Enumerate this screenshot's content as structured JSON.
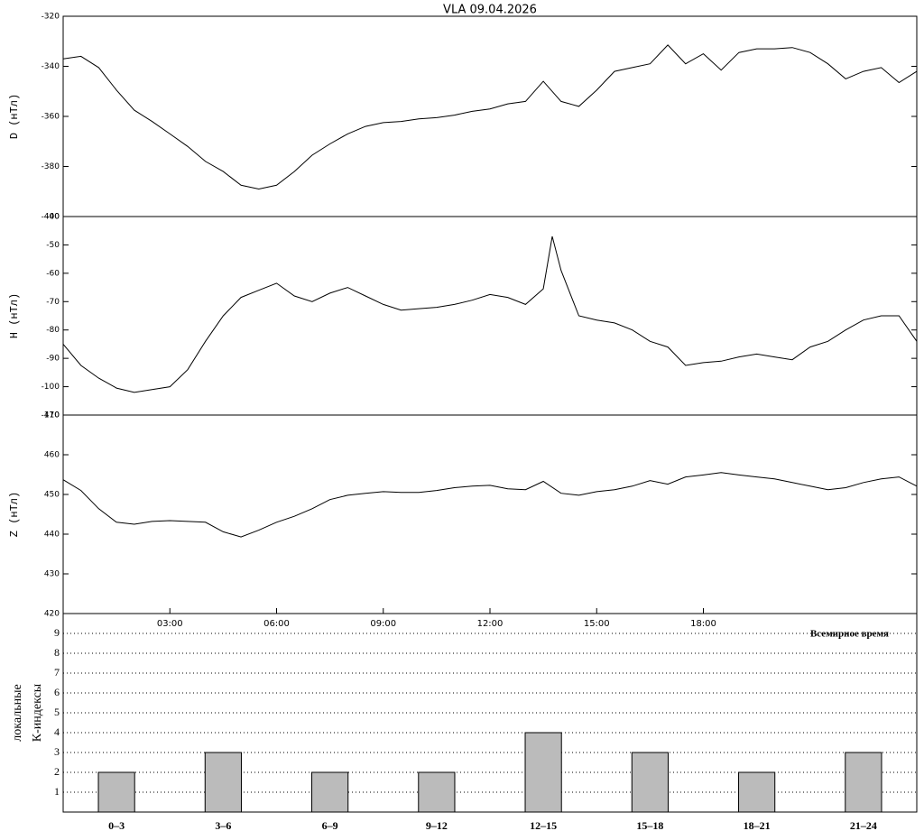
{
  "chart_data": [
    {
      "type": "line",
      "title": "VLA   09.04.2026",
      "ylabel": "D (нТл)",
      "color": "#000000",
      "x": [
        0,
        0.5,
        1,
        1.5,
        2,
        2.5,
        3,
        3.5,
        4,
        4.5,
        5,
        5.5,
        6,
        6.5,
        7,
        7.5,
        8,
        8.5,
        9,
        9.5,
        10,
        10.5,
        11,
        11.5,
        12,
        12.5,
        13,
        13.5,
        14,
        14.5,
        15,
        15.5,
        16,
        16.5,
        17,
        17.5,
        18,
        18.5,
        19,
        19.5,
        20,
        20.5,
        21,
        21.5,
        22,
        22.5,
        23,
        23.5,
        24
      ],
      "values": [
        -337,
        -336,
        -340.5,
        -349.5,
        -357.5,
        -362,
        -367,
        -372,
        -378,
        -382,
        -387.5,
        -389,
        -387.5,
        -382,
        -375.5,
        -371,
        -367,
        -364,
        -362.5,
        -362,
        -361,
        -360.5,
        -359.5,
        -358,
        -357,
        -355,
        -354,
        -346,
        -354,
        -356,
        -349.5,
        -342,
        -340.5,
        -339,
        -331.5,
        -339,
        -335,
        -341.5,
        -334.5,
        -333,
        -333,
        -332.5,
        -334.5,
        -339,
        -345,
        -342,
        -340.5,
        -346.5,
        -342
      ],
      "xlim": [
        0,
        24
      ],
      "ylim": [
        -400,
        -320
      ],
      "yticks": [
        -320,
        -340,
        -360,
        -380,
        -400
      ]
    },
    {
      "type": "line",
      "ylabel": "H (нТл)",
      "color": "#000000",
      "x": [
        0,
        0.5,
        1,
        1.5,
        2,
        2.5,
        3,
        3.5,
        4,
        4.5,
        5,
        5.5,
        6,
        6.5,
        7,
        7.5,
        8,
        8.5,
        9,
        9.5,
        10,
        10.5,
        11,
        11.5,
        12,
        12.5,
        13,
        13.5,
        13.75,
        14,
        14.5,
        15,
        15.5,
        16,
        16.5,
        17,
        17.5,
        18,
        18.5,
        19,
        19.5,
        20,
        20.5,
        21,
        21.5,
        22,
        22.5,
        23,
        23.5,
        24
      ],
      "values": [
        -85,
        -92.5,
        -97,
        -100.5,
        -102,
        -101,
        -100,
        -94,
        -84,
        -75,
        -68.5,
        -66,
        -63.5,
        -68,
        -70,
        -67,
        -65,
        -68,
        -71,
        -73,
        -72.5,
        -72,
        -71,
        -69.5,
        -67.5,
        -68.5,
        -71,
        -65.5,
        -47,
        -59,
        -75,
        -76.5,
        -77.5,
        -80,
        -84,
        -86,
        -92.5,
        -91.5,
        -91,
        -89.5,
        -88.5,
        -89.5,
        -90.5,
        -86,
        -84,
        -80,
        -76.5,
        -75,
        -75,
        -84
      ],
      "xlim": [
        0,
        24
      ],
      "ylim": [
        -110,
        -40
      ],
      "yticks": [
        -40,
        -50,
        -60,
        -70,
        -80,
        -90,
        -100,
        -110
      ]
    },
    {
      "type": "line",
      "ylabel": "Z (нТл)",
      "color": "#000000",
      "x_label": "Всемирное время",
      "x": [
        0,
        0.5,
        1,
        1.5,
        2,
        2.5,
        3,
        3.5,
        4,
        4.5,
        5,
        5.5,
        6,
        6.5,
        7,
        7.5,
        8,
        8.5,
        9,
        9.5,
        10,
        10.5,
        11,
        11.5,
        12,
        12.5,
        13,
        13.5,
        14,
        14.5,
        15,
        15.5,
        16,
        16.5,
        17,
        17.5,
        18,
        18.5,
        19,
        19.5,
        20,
        20.5,
        21,
        21.5,
        22,
        22.5,
        23,
        23.5,
        24
      ],
      "values": [
        453.7,
        451,
        446.4,
        443,
        442.5,
        443.2,
        443.4,
        443.2,
        443,
        440.6,
        439.3,
        441,
        443,
        444.5,
        446.4,
        448.7,
        449.8,
        450.3,
        450.7,
        450.5,
        450.5,
        451,
        451.7,
        452.1,
        452.3,
        451.4,
        451.2,
        453.3,
        450.3,
        449.8,
        450.7,
        451.2,
        452.1,
        453.5,
        452.6,
        454.4,
        454.9,
        455.5,
        454.9,
        454.4,
        453.9,
        453,
        452.1,
        451.2,
        451.7,
        453,
        453.9,
        454.4,
        452.1
      ],
      "xlim": [
        0,
        24
      ],
      "ylim": [
        420,
        470
      ],
      "yticks": [
        470,
        460,
        450,
        440,
        430,
        420
      ],
      "xticks": [
        {
          "value": 3,
          "label": "03:00"
        },
        {
          "value": 6,
          "label": "06:00"
        },
        {
          "value": 9,
          "label": "09:00"
        },
        {
          "value": 12,
          "label": "12:00"
        },
        {
          "value": 15,
          "label": "15:00"
        },
        {
          "value": 18,
          "label": "18:00"
        }
      ]
    },
    {
      "type": "bar",
      "ylabel": [
        "локальные",
        "К-индексы"
      ],
      "color": "#bbbbbb",
      "categories": [
        "0–3",
        "3–6",
        "6–9",
        "9–12",
        "12–15",
        "15–18",
        "18–21",
        "21–24"
      ],
      "values": [
        2,
        3,
        2,
        2,
        4,
        3,
        2,
        3
      ],
      "ylim": [
        0,
        10
      ],
      "yticks": [
        1,
        2,
        3,
        4,
        5,
        6,
        7,
        8,
        9
      ],
      "grid": true
    }
  ]
}
